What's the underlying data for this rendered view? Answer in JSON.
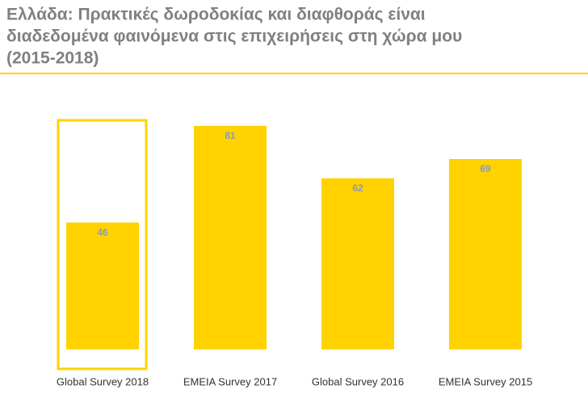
{
  "chart_data": {
    "type": "bar",
    "title": [
      "Ελλάδα: Πρακτικές δωροδοκίας και διαφθοράς είναι",
      "διαδεδομένα φαινόμενα στις επιχειρήσεις στη χώρα μου",
      "(2015-2018)"
    ],
    "categories": [
      "Global Survey 2018",
      "EMEIA Survey 2017",
      "Global Survey 2016",
      "EMEIA Survey 2015"
    ],
    "values": [
      46,
      81,
      62,
      69
    ],
    "color": "#ffd200",
    "ylim": [
      0,
      100
    ]
  }
}
